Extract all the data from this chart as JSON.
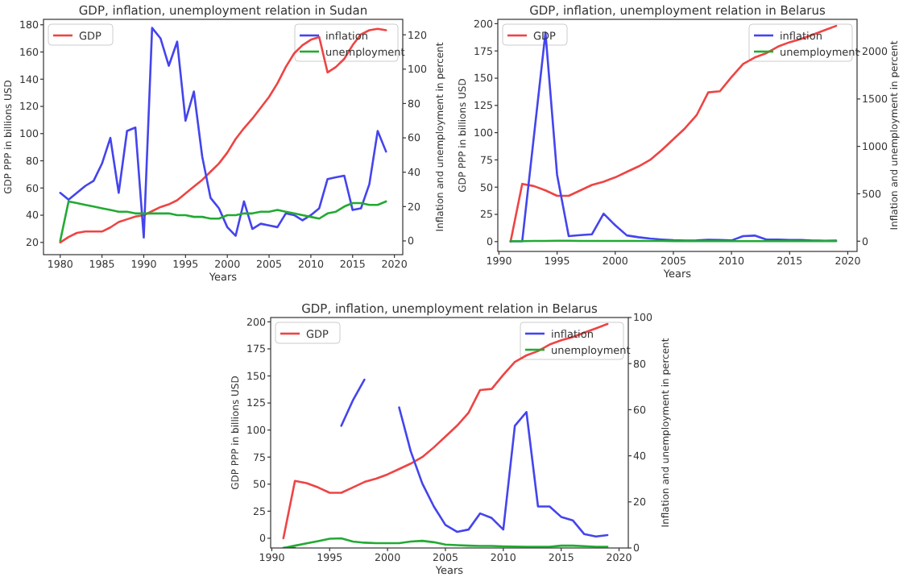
{
  "chart_data": [
    {
      "type": "line",
      "title": "GDP, inflation, unemployment relation in Sudan",
      "xlabel": "Years",
      "ylabel": "GDP PPP in billions USD",
      "y2label": "Inflation and unemployment in percent",
      "legend": "top",
      "x": [
        1980,
        1981,
        1982,
        1983,
        1984,
        1985,
        1986,
        1987,
        1988,
        1989,
        1990,
        1991,
        1992,
        1993,
        1994,
        1995,
        1996,
        1997,
        1998,
        1999,
        2000,
        2001,
        2002,
        2003,
        2004,
        2005,
        2006,
        2007,
        2008,
        2009,
        2010,
        2011,
        2012,
        2013,
        2014,
        2015,
        2016,
        2017,
        2018,
        2019
      ],
      "xlim": [
        1978,
        2021
      ],
      "xticks": [
        1980,
        1985,
        1990,
        1995,
        2000,
        2005,
        2010,
        2015,
        2020
      ],
      "ylim": [
        11,
        184
      ],
      "yticks": [
        20,
        40,
        60,
        80,
        100,
        120,
        140,
        160,
        180
      ],
      "y2lim": [
        -8,
        129
      ],
      "y2ticks": [
        0,
        20,
        40,
        60,
        80,
        100,
        120
      ],
      "series": [
        {
          "name": "GDP",
          "color": "#ee4444",
          "values": [
            20,
            24,
            27,
            28,
            28,
            28,
            31,
            35,
            37,
            39,
            40,
            43,
            46,
            48,
            51,
            56,
            61,
            66,
            72,
            78,
            86,
            96,
            104,
            111,
            119,
            127,
            137,
            149,
            159,
            165,
            169,
            171,
            145,
            149,
            155,
            165,
            173,
            176,
            177,
            176
          ]
        },
        {
          "name": "inflation",
          "color": "#4444ee",
          "axis": "y2",
          "values": [
            28,
            24,
            28,
            32,
            35,
            45,
            60,
            28,
            64,
            66,
            2,
            124,
            118,
            102,
            116,
            70,
            87,
            49,
            25,
            19,
            8,
            3,
            23,
            7,
            10,
            9,
            8,
            16,
            15,
            12,
            15,
            19,
            36,
            37,
            38,
            18,
            19,
            33,
            64,
            52
          ]
        },
        {
          "name": "unemployment",
          "color": "#22aa33",
          "axis": "y2",
          "values": [
            0,
            23,
            22,
            21,
            20,
            19,
            18,
            17,
            17,
            16,
            16,
            16,
            16,
            16,
            15,
            15,
            14,
            14,
            13,
            13,
            15,
            15,
            16,
            16,
            17,
            17,
            18,
            17,
            16,
            15,
            14,
            13,
            16,
            17,
            20,
            22,
            22,
            21,
            21,
            23
          ]
        }
      ]
    },
    {
      "type": "line",
      "title": "GDP, inflation, unemployment relation in Belarus",
      "xlabel": "Years",
      "ylabel": "GDP PPP in billions USD",
      "y2label": "Inflation and unemployment in percent",
      "legend": "top",
      "x": [
        1991,
        1992,
        1993,
        1994,
        1995,
        1996,
        1997,
        1998,
        1999,
        2000,
        2001,
        2002,
        2003,
        2004,
        2005,
        2006,
        2007,
        2008,
        2009,
        2010,
        2011,
        2012,
        2013,
        2014,
        2015,
        2016,
        2017,
        2018,
        2019
      ],
      "xlim": [
        1989.9,
        2020.8
      ],
      "xticks": [
        1990,
        1995,
        2000,
        2005,
        2010,
        2015,
        2020
      ],
      "ylim": [
        -9,
        204
      ],
      "yticks": [
        0,
        25,
        50,
        75,
        100,
        125,
        150,
        175,
        200
      ],
      "y2lim": [
        -108,
        2340
      ],
      "y2ticks": [
        0,
        500,
        1000,
        1500,
        2000
      ],
      "series": [
        {
          "name": "GDP",
          "color": "#ee4444",
          "values": [
            0,
            53,
            51,
            47,
            42,
            42,
            47,
            52,
            55,
            59,
            64,
            69,
            75,
            84,
            94,
            104,
            116,
            137,
            138,
            151,
            163,
            169,
            173,
            179,
            183,
            186,
            190,
            194,
            198
          ]
        },
        {
          "name": "inflation",
          "color": "#4444ee",
          "axis": "y2",
          "values": [
            0,
            0,
            1100,
            2200,
            700,
            53,
            64,
            73,
            290,
            168,
            61,
            42,
            28,
            18,
            10,
            7,
            8,
            15,
            13,
            8,
            53,
            59,
            18,
            18,
            13.5,
            12,
            6,
            5,
            5.6
          ]
        },
        {
          "name": "unemployment",
          "color": "#22aa33",
          "axis": "y2",
          "values": [
            0,
            1,
            2,
            3,
            4,
            4.2,
            2.8,
            2.3,
            2.1,
            2.1,
            2.1,
            2.8,
            3.1,
            2.5,
            1.5,
            1.2,
            1,
            0.9,
            0.9,
            0.7,
            0.6,
            0.5,
            0.5,
            0.5,
            1,
            1,
            0.8,
            0.5,
            0.5
          ]
        }
      ]
    },
    {
      "type": "line",
      "title": "GDP, inflation, unemployment relation in Belarus",
      "xlabel": "Years",
      "ylabel": "GDP PPP in billions USD",
      "y2label": "Inflation and unemployment in percent",
      "legend": "top",
      "x": [
        1991,
        1992,
        1993,
        1994,
        1995,
        1996,
        1997,
        1998,
        1999,
        2000,
        2001,
        2002,
        2003,
        2004,
        2005,
        2006,
        2007,
        2008,
        2009,
        2010,
        2011,
        2012,
        2013,
        2014,
        2015,
        2016,
        2017,
        2018,
        2019
      ],
      "xlim": [
        1989.9,
        2020.8
      ],
      "xticks": [
        1990,
        1995,
        2000,
        2005,
        2010,
        2015,
        2020
      ],
      "ylim": [
        -9,
        204
      ],
      "yticks": [
        0,
        25,
        50,
        75,
        100,
        125,
        150,
        175,
        200
      ],
      "y2lim": [
        0,
        100
      ],
      "y2ticks": [
        0,
        20,
        40,
        60,
        80,
        100
      ],
      "series": [
        {
          "name": "GDP",
          "color": "#ee4444",
          "values": [
            0,
            53,
            51,
            47,
            42,
            42,
            47,
            52,
            55,
            59,
            64,
            69,
            75,
            84,
            94,
            104,
            116,
            137,
            138,
            151,
            163,
            169,
            173,
            179,
            183,
            186,
            190,
            194,
            198
          ]
        },
        {
          "name": "inflation",
          "color": "#4444ee",
          "axis": "y2",
          "values": [
            0,
            0,
            null,
            null,
            null,
            53,
            64,
            73,
            null,
            null,
            61,
            42,
            28,
            18,
            10,
            7,
            8,
            15,
            13,
            8,
            53,
            59,
            18,
            18,
            13.5,
            12,
            6,
            5,
            5.6
          ]
        },
        {
          "name": "unemployment",
          "color": "#22aa33",
          "axis": "y2",
          "values": [
            0,
            1,
            2,
            3,
            4,
            4.2,
            2.8,
            2.3,
            2.1,
            2.1,
            2.1,
            2.8,
            3.1,
            2.5,
            1.5,
            1.2,
            1,
            0.9,
            0.9,
            0.7,
            0.6,
            0.5,
            0.5,
            0.5,
            1,
            1,
            0.8,
            0.5,
            0.5
          ]
        }
      ]
    }
  ]
}
